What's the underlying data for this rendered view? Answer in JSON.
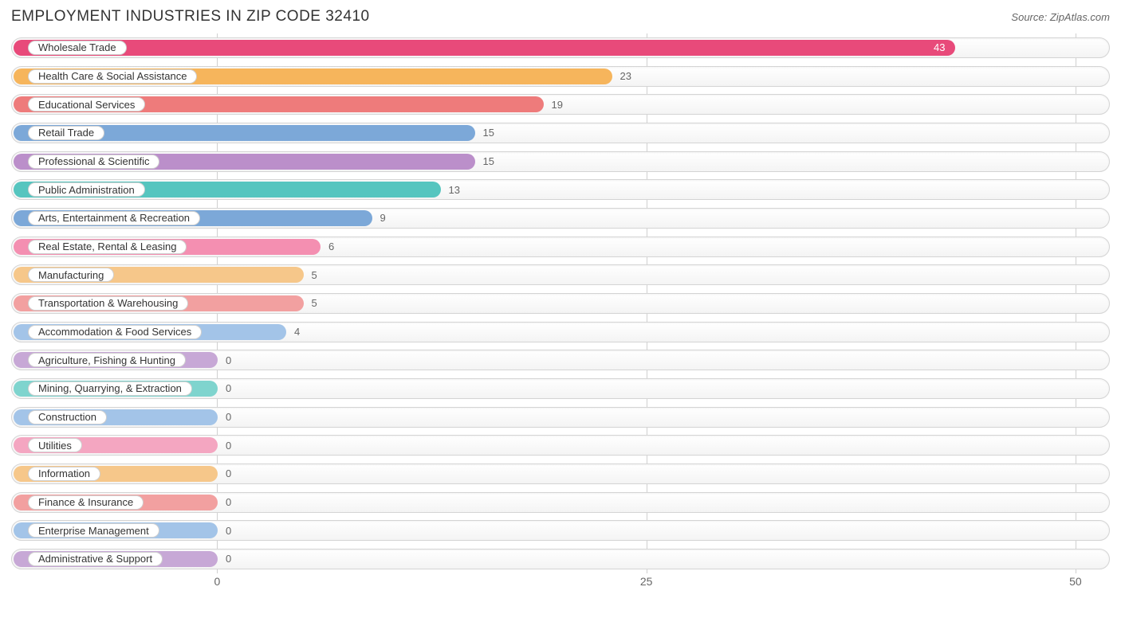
{
  "title": "EMPLOYMENT INDUSTRIES IN ZIP CODE 32410",
  "source_label": "Source:",
  "source_name": "ZipAtlas.com",
  "chart": {
    "type": "bar-horizontal",
    "xmin": -12,
    "xmax": 52,
    "ticks": [
      0,
      25,
      50
    ],
    "grid_color": "#d0d0d0",
    "track_border_color": "#d4d4d4",
    "track_bg_top": "#ffffff",
    "track_bg_bottom": "#f4f4f4",
    "pill_bg": "#ffffff",
    "pill_border": "#cfcfcf",
    "label_fontsize": 13,
    "axis_fontsize": 14,
    "title_fontsize": 19,
    "value_label_inside_color": "#ffffff",
    "value_label_outside_color": "#666666",
    "bars": [
      {
        "label": "Wholesale Trade",
        "value": 43,
        "color": "#e84a7a"
      },
      {
        "label": "Health Care & Social Assistance",
        "value": 23,
        "color": "#f6b55c"
      },
      {
        "label": "Educational Services",
        "value": 19,
        "color": "#ee7b7b"
      },
      {
        "label": "Retail Trade",
        "value": 15,
        "color": "#7ca8d8"
      },
      {
        "label": "Professional & Scientific",
        "value": 15,
        "color": "#bb8fca"
      },
      {
        "label": "Public Administration",
        "value": 13,
        "color": "#56c5bf"
      },
      {
        "label": "Arts, Entertainment & Recreation",
        "value": 9,
        "color": "#7ca8d8"
      },
      {
        "label": "Real Estate, Rental & Leasing",
        "value": 6,
        "color": "#f48fb1"
      },
      {
        "label": "Manufacturing",
        "value": 5,
        "color": "#f6c78a"
      },
      {
        "label": "Transportation & Warehousing",
        "value": 5,
        "color": "#f2a0a0"
      },
      {
        "label": "Accommodation & Food Services",
        "value": 4,
        "color": "#a3c4e8"
      },
      {
        "label": "Agriculture, Fishing & Hunting",
        "value": 0,
        "color": "#c7a8d6"
      },
      {
        "label": "Mining, Quarrying, & Extraction",
        "value": 0,
        "color": "#7fd4ce"
      },
      {
        "label": "Construction",
        "value": 0,
        "color": "#a3c4e8"
      },
      {
        "label": "Utilities",
        "value": 0,
        "color": "#f4a6c1"
      },
      {
        "label": "Information",
        "value": 0,
        "color": "#f6c78a"
      },
      {
        "label": "Finance & Insurance",
        "value": 0,
        "color": "#f2a0a0"
      },
      {
        "label": "Enterprise Management",
        "value": 0,
        "color": "#a3c4e8"
      },
      {
        "label": "Administrative & Support",
        "value": 0,
        "color": "#c7a8d6"
      }
    ]
  }
}
